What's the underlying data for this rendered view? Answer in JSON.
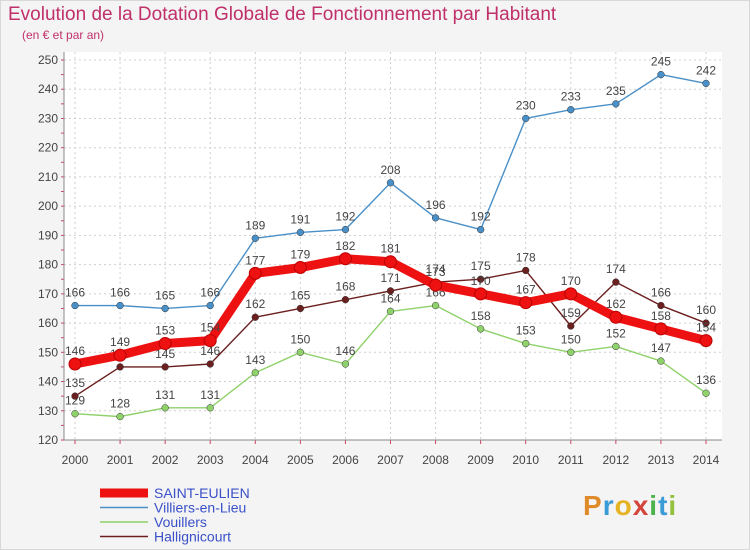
{
  "title": "Evolution de la Dotation Globale de Fonctionnement par Habitant",
  "subtitle": "(en € et par an)",
  "logo": {
    "p": "P",
    "r": "r",
    "o": "o",
    "x": "x",
    "i1": "i",
    "t": "t",
    "i2": "i"
  },
  "chart_data": {
    "type": "line",
    "title": "Evolution de la Dotation Globale de Fonctionnement par Habitant",
    "subtitle": "(en € et par an)",
    "categories": [
      "2000",
      "2001",
      "2002",
      "2003",
      "2004",
      "2005",
      "2006",
      "2007",
      "2008",
      "2009",
      "2010",
      "2011",
      "2012",
      "2013",
      "2014"
    ],
    "ylim": [
      120,
      250
    ],
    "yticks": [
      120,
      130,
      140,
      150,
      160,
      170,
      180,
      190,
      200,
      210,
      220,
      230,
      240,
      250
    ],
    "grid": true,
    "legend_position": "bottom-left",
    "series": [
      {
        "name": "Villiers-en-Lieu",
        "color": "#4a90c8",
        "values": [
          166,
          166,
          165,
          166,
          189,
          191,
          192,
          208,
          196,
          192,
          230,
          233,
          235,
          245,
          242
        ]
      },
      {
        "name": "Vouillers",
        "color": "#8fd16a",
        "values": [
          129,
          128,
          131,
          131,
          143,
          150,
          146,
          164,
          166,
          158,
          153,
          150,
          152,
          147,
          136
        ]
      },
      {
        "name": "Hallignicourt",
        "color": "#6b1f1f",
        "values": [
          135,
          145,
          145,
          146,
          162,
          165,
          168,
          171,
          174,
          175,
          178,
          159,
          174,
          166,
          160
        ]
      },
      {
        "name": "SAINT-EULIEN",
        "color": "#ee1111",
        "values": [
          146,
          149,
          153,
          154,
          177,
          179,
          182,
          181,
          173,
          170,
          167,
          170,
          162,
          158,
          154
        ]
      }
    ]
  }
}
